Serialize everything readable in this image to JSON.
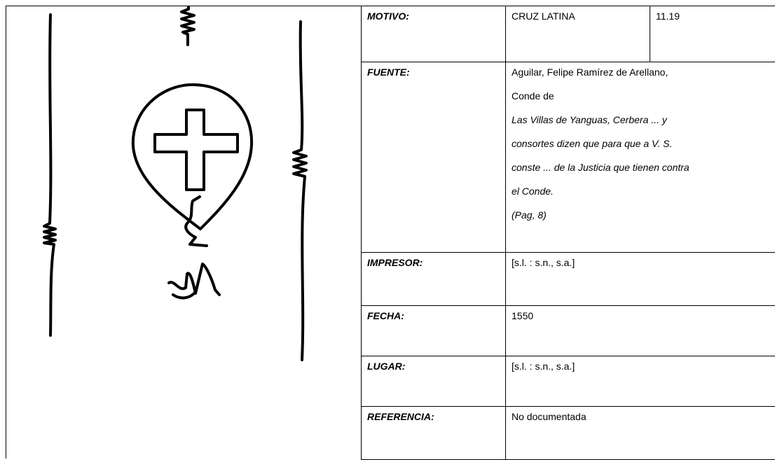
{
  "record": {
    "code": "11.19",
    "rows": [
      {
        "label": "MOTIVO:",
        "value": "CRUZ LATINA"
      },
      {
        "label": "FUENTE:",
        "author": [
          "Aguilar, Felipe Ramírez de Arellano,",
          "Conde de"
        ],
        "title": [
          "Las Villas de Yanguas, Cerbera ... y",
          "consortes dizen que para que a V. S.",
          "conste ... de la Justicia que tienen contra",
          "el Conde.",
          "(Pag, 8)"
        ]
      },
      {
        "label": "IMPRESOR:",
        "value": "[s.l. : s.n., s.a.]"
      },
      {
        "label": "FECHA:",
        "value": "1550"
      },
      {
        "label": "LUGAR:",
        "value": "[s.l. : s.n., s.a.]"
      },
      {
        "label": "REFERENCIA:",
        "value": "No documentada"
      }
    ]
  }
}
